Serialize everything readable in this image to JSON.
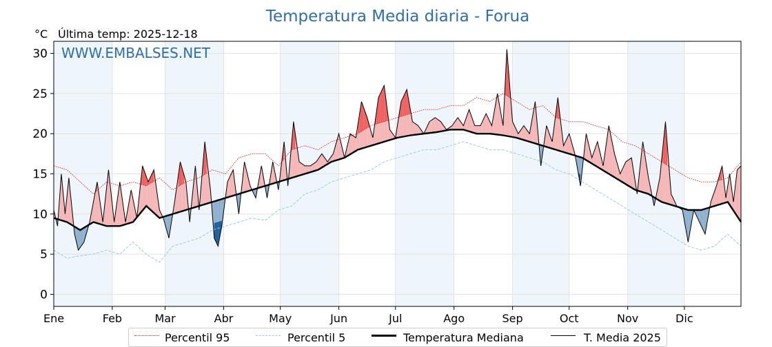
{
  "chart_data": {
    "type": "line",
    "title": "Temperatura Media diaria - Forua",
    "unit_label": "°C",
    "subtitle": "Última temp: 2025-12-18",
    "watermark": "WWW.EMBALSES.NET",
    "ylim": [
      -1.5,
      31.5
    ],
    "yticks": [
      0,
      5,
      10,
      15,
      20,
      25,
      30
    ],
    "months": [
      "Ene",
      "Feb",
      "Mar",
      "Abr",
      "May",
      "Jun",
      "Jul",
      "Ago",
      "Sep",
      "Oct",
      "Nov",
      "Dic"
    ],
    "month_start_days": [
      1,
      32,
      60,
      91,
      121,
      152,
      182,
      213,
      244,
      274,
      305,
      335
    ],
    "days_in_year": 365,
    "grid": true,
    "legend_placement": "bottom-center",
    "colors": {
      "p95": "#e31a1c",
      "p5": "#9ecae1",
      "median": "#000000",
      "current": "#000000",
      "above_fill": "#f4b6b6",
      "above_strong_fill": "#f06060",
      "below_fill": "#8fb0cf",
      "below_strong_fill": "#1f5e9e",
      "month_shade": "#eef5fb",
      "title": "#2f6fa7",
      "watermark": "#2f6fa7"
    },
    "series": [
      {
        "name": "Percentil 95",
        "key": "p95",
        "style": "dotted",
        "points": [
          [
            1,
            16
          ],
          [
            8,
            15.5
          ],
          [
            15,
            14
          ],
          [
            22,
            12.5
          ],
          [
            29,
            14
          ],
          [
            36,
            13.5
          ],
          [
            43,
            14
          ],
          [
            50,
            13.5
          ],
          [
            57,
            14.5
          ],
          [
            64,
            13
          ],
          [
            71,
            14
          ],
          [
            78,
            14.5
          ],
          [
            85,
            15.5
          ],
          [
            92,
            15
          ],
          [
            99,
            17
          ],
          [
            106,
            17.5
          ],
          [
            113,
            17.5
          ],
          [
            120,
            16
          ],
          [
            127,
            18
          ],
          [
            134,
            18.5
          ],
          [
            141,
            18
          ],
          [
            148,
            19
          ],
          [
            155,
            19.5
          ],
          [
            162,
            20
          ],
          [
            169,
            21
          ],
          [
            176,
            21.5
          ],
          [
            183,
            22
          ],
          [
            190,
            22.5
          ],
          [
            197,
            23
          ],
          [
            204,
            23
          ],
          [
            211,
            23.5
          ],
          [
            218,
            23.5
          ],
          [
            225,
            24.5
          ],
          [
            232,
            24
          ],
          [
            239,
            25
          ],
          [
            246,
            24
          ],
          [
            253,
            23
          ],
          [
            260,
            23.5
          ],
          [
            267,
            22
          ],
          [
            274,
            21.5
          ],
          [
            281,
            21.5
          ],
          [
            288,
            21
          ],
          [
            295,
            20.5
          ],
          [
            302,
            19
          ],
          [
            309,
            18.5
          ],
          [
            316,
            17.5
          ],
          [
            323,
            16.5
          ],
          [
            330,
            15.5
          ],
          [
            337,
            14.5
          ],
          [
            344,
            14
          ],
          [
            351,
            14
          ],
          [
            358,
            14.5
          ],
          [
            365,
            16.5
          ]
        ]
      },
      {
        "name": "Percentil 5",
        "key": "p5",
        "style": "dashed",
        "points": [
          [
            1,
            5.5
          ],
          [
            8,
            4.5
          ],
          [
            15,
            4.8
          ],
          [
            22,
            5
          ],
          [
            29,
            5.5
          ],
          [
            36,
            5
          ],
          [
            43,
            6.5
          ],
          [
            50,
            5
          ],
          [
            57,
            4
          ],
          [
            64,
            6
          ],
          [
            71,
            6.5
          ],
          [
            78,
            7
          ],
          [
            85,
            8
          ],
          [
            92,
            8.5
          ],
          [
            99,
            9
          ],
          [
            106,
            9.5
          ],
          [
            113,
            9.2
          ],
          [
            120,
            10.5
          ],
          [
            127,
            11
          ],
          [
            134,
            12.5
          ],
          [
            141,
            13
          ],
          [
            148,
            14
          ],
          [
            155,
            14.5
          ],
          [
            162,
            15
          ],
          [
            169,
            15.5
          ],
          [
            176,
            16.5
          ],
          [
            183,
            17
          ],
          [
            190,
            17.5
          ],
          [
            197,
            18
          ],
          [
            204,
            18
          ],
          [
            211,
            18.5
          ],
          [
            218,
            19
          ],
          [
            225,
            18.5
          ],
          [
            232,
            18
          ],
          [
            239,
            18
          ],
          [
            246,
            17.5
          ],
          [
            253,
            17
          ],
          [
            260,
            16.5
          ],
          [
            267,
            15.5
          ],
          [
            274,
            15
          ],
          [
            281,
            14
          ],
          [
            288,
            13
          ],
          [
            295,
            12
          ],
          [
            302,
            11
          ],
          [
            309,
            10
          ],
          [
            316,
            9
          ],
          [
            323,
            8
          ],
          [
            330,
            7
          ],
          [
            337,
            6
          ],
          [
            344,
            5.5
          ],
          [
            351,
            6
          ],
          [
            358,
            7.5
          ],
          [
            365,
            6
          ]
        ]
      },
      {
        "name": "Temperatura Mediana",
        "key": "median",
        "style": "bold",
        "points": [
          [
            1,
            9.5
          ],
          [
            8,
            9
          ],
          [
            15,
            8
          ],
          [
            22,
            9
          ],
          [
            29,
            8.5
          ],
          [
            36,
            8.5
          ],
          [
            43,
            9
          ],
          [
            50,
            11
          ],
          [
            57,
            9.5
          ],
          [
            64,
            10
          ],
          [
            71,
            10.5
          ],
          [
            78,
            11
          ],
          [
            85,
            11.5
          ],
          [
            92,
            12
          ],
          [
            99,
            12.5
          ],
          [
            106,
            13
          ],
          [
            113,
            13.5
          ],
          [
            120,
            14
          ],
          [
            127,
            14.5
          ],
          [
            134,
            15
          ],
          [
            141,
            15.5
          ],
          [
            148,
            16.5
          ],
          [
            155,
            17
          ],
          [
            162,
            18
          ],
          [
            169,
            18.5
          ],
          [
            176,
            19
          ],
          [
            183,
            19.5
          ],
          [
            190,
            19.8
          ],
          [
            197,
            20
          ],
          [
            204,
            20.2
          ],
          [
            211,
            20.5
          ],
          [
            218,
            20.5
          ],
          [
            225,
            20
          ],
          [
            232,
            20
          ],
          [
            239,
            19.8
          ],
          [
            246,
            19.5
          ],
          [
            253,
            19
          ],
          [
            260,
            18.5
          ],
          [
            267,
            18
          ],
          [
            274,
            17.5
          ],
          [
            281,
            17
          ],
          [
            288,
            16
          ],
          [
            295,
            15
          ],
          [
            302,
            14
          ],
          [
            309,
            13
          ],
          [
            316,
            12.5
          ],
          [
            323,
            11.5
          ],
          [
            330,
            11
          ],
          [
            337,
            10.5
          ],
          [
            344,
            10.5
          ],
          [
            351,
            11
          ],
          [
            358,
            11.5
          ],
          [
            365,
            9
          ]
        ]
      },
      {
        "name": "T. Media 2025",
        "key": "current",
        "style": "solid",
        "points": [
          [
            1,
            10.5
          ],
          [
            3,
            8.5
          ],
          [
            5,
            15
          ],
          [
            7,
            10
          ],
          [
            9,
            14.5
          ],
          [
            12,
            7.5
          ],
          [
            14,
            5.5
          ],
          [
            17,
            6.5
          ],
          [
            20,
            9
          ],
          [
            24,
            14
          ],
          [
            27,
            9
          ],
          [
            30,
            15.5
          ],
          [
            33,
            9
          ],
          [
            36,
            14
          ],
          [
            39,
            9
          ],
          [
            42,
            13
          ],
          [
            45,
            9.5
          ],
          [
            48,
            16
          ],
          [
            51,
            14
          ],
          [
            54,
            15.5
          ],
          [
            57,
            10.5
          ],
          [
            59,
            9.5
          ],
          [
            62,
            7
          ],
          [
            65,
            11.5
          ],
          [
            68,
            16.5
          ],
          [
            71,
            14
          ],
          [
            73,
            9
          ],
          [
            76,
            16
          ],
          [
            78,
            10.5
          ],
          [
            81,
            19
          ],
          [
            84,
            13
          ],
          [
            86,
            7
          ],
          [
            88,
            6
          ],
          [
            90,
            8.5
          ],
          [
            93,
            14
          ],
          [
            96,
            15.5
          ],
          [
            99,
            10
          ],
          [
            102,
            16.5
          ],
          [
            105,
            13.5
          ],
          [
            108,
            12
          ],
          [
            111,
            16
          ],
          [
            114,
            12
          ],
          [
            117,
            16.5
          ],
          [
            120,
            13
          ],
          [
            123,
            19
          ],
          [
            125,
            13.5
          ],
          [
            128,
            21.5
          ],
          [
            131,
            16.5
          ],
          [
            134,
            16
          ],
          [
            137,
            16
          ],
          [
            140,
            16.5
          ],
          [
            143,
            17.5
          ],
          [
            146,
            16.5
          ],
          [
            149,
            17.5
          ],
          [
            152,
            20
          ],
          [
            155,
            17
          ],
          [
            158,
            20
          ],
          [
            161,
            19.5
          ],
          [
            164,
            24
          ],
          [
            167,
            22
          ],
          [
            170,
            19.5
          ],
          [
            173,
            24.5
          ],
          [
            176,
            26
          ],
          [
            179,
            20.5
          ],
          [
            182,
            19.5
          ],
          [
            185,
            24
          ],
          [
            188,
            25.5
          ],
          [
            191,
            21.5
          ],
          [
            194,
            21
          ],
          [
            197,
            20
          ],
          [
            200,
            21.5
          ],
          [
            203,
            22
          ],
          [
            206,
            21.5
          ],
          [
            209,
            20.5
          ],
          [
            212,
            21
          ],
          [
            215,
            22
          ],
          [
            218,
            21
          ],
          [
            221,
            23
          ],
          [
            224,
            21
          ],
          [
            227,
            21
          ],
          [
            230,
            22.5
          ],
          [
            233,
            21
          ],
          [
            236,
            25
          ],
          [
            239,
            21
          ],
          [
            241,
            30.5
          ],
          [
            244,
            21.5
          ],
          [
            247,
            20
          ],
          [
            250,
            21
          ],
          [
            253,
            20
          ],
          [
            256,
            24
          ],
          [
            259,
            16
          ],
          [
            262,
            21
          ],
          [
            265,
            19
          ],
          [
            268,
            24.5
          ],
          [
            271,
            18.5
          ],
          [
            274,
            20
          ],
          [
            277,
            17.5
          ],
          [
            280,
            13.5
          ],
          [
            283,
            20
          ],
          [
            286,
            17
          ],
          [
            289,
            19
          ],
          [
            292,
            16
          ],
          [
            295,
            21
          ],
          [
            298,
            17.5
          ],
          [
            301,
            15
          ],
          [
            304,
            16.5
          ],
          [
            307,
            17
          ],
          [
            310,
            12.5
          ],
          [
            313,
            19
          ],
          [
            316,
            14.5
          ],
          [
            319,
            11
          ],
          [
            322,
            14.5
          ],
          [
            325,
            21.5
          ],
          [
            328,
            12.5
          ],
          [
            331,
            11
          ],
          [
            334,
            10.5
          ],
          [
            337,
            6.5
          ],
          [
            340,
            10.5
          ],
          [
            343,
            9
          ],
          [
            346,
            7.5
          ],
          [
            349,
            11.5
          ],
          [
            352,
            13.5
          ],
          [
            355,
            16
          ],
          [
            357,
            12
          ],
          [
            359,
            15
          ],
          [
            361,
            11.5
          ],
          [
            363,
            15.5
          ],
          [
            365,
            16
          ]
        ]
      }
    ]
  }
}
